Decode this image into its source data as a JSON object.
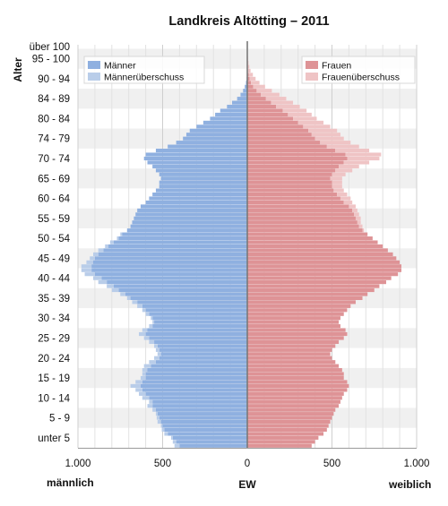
{
  "chart_data": {
    "type": "bar",
    "orientation": "horizontal-population-pyramid",
    "title": "Landkreis Altötting – 2011",
    "ylabel": "Alter",
    "xlabel_left": "männlich",
    "xlabel_center": "EW",
    "xlabel_right": "weiblich",
    "xlim": [
      -1000,
      1000
    ],
    "x_ticks": [
      -1000,
      -500,
      0,
      500,
      1000
    ],
    "x_tick_labels": [
      "1.000",
      "500",
      "0",
      "500",
      "1.000"
    ],
    "age_group_labels": [
      "unter 5",
      "5 - 9",
      "10 - 14",
      "15 - 19",
      "20 - 24",
      "25 - 29",
      "30 - 34",
      "35 - 39",
      "40 - 44",
      "45 - 49",
      "50 - 54",
      "55 - 59",
      "60 - 64",
      "65 - 69",
      "70 - 74",
      "74 - 79",
      "80 - 84",
      "84 - 89",
      "90 - 94",
      "95 - 100",
      "über 100"
    ],
    "ages": [
      0,
      1,
      2,
      3,
      4,
      5,
      6,
      7,
      8,
      9,
      10,
      11,
      12,
      13,
      14,
      15,
      16,
      17,
      18,
      19,
      20,
      21,
      22,
      23,
      24,
      25,
      26,
      27,
      28,
      29,
      30,
      31,
      32,
      33,
      34,
      35,
      36,
      37,
      38,
      39,
      40,
      41,
      42,
      43,
      44,
      45,
      46,
      47,
      48,
      49,
      50,
      51,
      52,
      53,
      54,
      55,
      56,
      57,
      58,
      59,
      60,
      61,
      62,
      63,
      64,
      65,
      66,
      67,
      68,
      69,
      70,
      71,
      72,
      73,
      74,
      75,
      76,
      77,
      78,
      79,
      80,
      81,
      82,
      83,
      84,
      85,
      86,
      87,
      88,
      89,
      90,
      91,
      92,
      93,
      94,
      95,
      96,
      97,
      98,
      99,
      100
    ],
    "series": [
      {
        "name": "Männer",
        "color": "#8fb0e0",
        "values": [
          400,
          420,
          440,
          470,
          490,
          500,
          510,
          520,
          530,
          540,
          560,
          560,
          580,
          600,
          620,
          630,
          620,
          600,
          600,
          590,
          570,
          540,
          520,
          510,
          520,
          530,
          550,
          580,
          600,
          590,
          560,
          550,
          560,
          580,
          600,
          620,
          650,
          690,
          720,
          760,
          790,
          830,
          860,
          900,
          920,
          920,
          910,
          900,
          880,
          850,
          820,
          790,
          760,
          740,
          710,
          690,
          680,
          670,
          660,
          650,
          630,
          600,
          580,
          560,
          540,
          520,
          520,
          510,
          520,
          540,
          560,
          590,
          610,
          600,
          540,
          470,
          420,
          380,
          360,
          340,
          300,
          260,
          220,
          190,
          160,
          120,
          90,
          60,
          40,
          25,
          15,
          8,
          4,
          2,
          1,
          0,
          0,
          0,
          0,
          0,
          0
        ]
      },
      {
        "name": "Männerüberschuss",
        "color": "#b9cde9",
        "values": [
          30,
          20,
          10,
          20,
          15,
          10,
          20,
          15,
          10,
          20,
          30,
          20,
          40,
          40,
          40,
          60,
          40,
          30,
          20,
          30,
          40,
          40,
          30,
          20,
          20,
          20,
          30,
          30,
          40,
          30,
          20,
          10,
          10,
          20,
          20,
          30,
          30,
          20,
          30,
          40,
          40,
          50,
          50,
          60,
          60,
          60,
          40,
          30,
          30,
          30,
          20,
          20,
          10,
          10,
          0,
          0,
          0,
          0,
          0,
          0,
          0,
          0,
          0,
          0,
          0,
          0,
          0,
          0,
          0,
          0,
          0,
          0,
          0,
          0,
          0,
          0,
          0,
          0,
          0,
          0,
          0,
          0,
          0,
          0,
          0,
          0,
          0,
          0,
          0,
          0,
          0,
          0,
          0,
          0,
          0,
          0,
          0,
          0,
          0,
          0,
          0
        ]
      },
      {
        "name": "Frauen",
        "color": "#de9396",
        "values": [
          380,
          400,
          420,
          450,
          470,
          480,
          490,
          500,
          510,
          520,
          540,
          550,
          560,
          570,
          590,
          600,
          590,
          570,
          570,
          560,
          540,
          520,
          500,
          490,
          500,
          520,
          540,
          570,
          590,
          580,
          550,
          540,
          550,
          570,
          590,
          610,
          640,
          680,
          710,
          750,
          780,
          820,
          850,
          890,
          910,
          910,
          900,
          880,
          860,
          830,
          800,
          770,
          740,
          710,
          680,
          660,
          650,
          640,
          630,
          620,
          600,
          570,
          550,
          530,
          510,
          500,
          500,
          490,
          500,
          520,
          540,
          570,
          590,
          580,
          520,
          470,
          430,
          400,
          380,
          360,
          330,
          300,
          270,
          240,
          210,
          170,
          140,
          110,
          80,
          55,
          35,
          22,
          14,
          8,
          4,
          2,
          1,
          0,
          0,
          0,
          0
        ]
      },
      {
        "name": "Frauenüberschuss",
        "color": "#efc4c5",
        "values": [
          0,
          0,
          0,
          0,
          0,
          0,
          0,
          0,
          0,
          0,
          0,
          0,
          0,
          0,
          0,
          0,
          0,
          0,
          0,
          0,
          0,
          0,
          0,
          0,
          0,
          0,
          0,
          0,
          0,
          0,
          0,
          0,
          0,
          0,
          0,
          0,
          0,
          0,
          0,
          0,
          0,
          0,
          0,
          0,
          0,
          0,
          0,
          0,
          0,
          0,
          0,
          0,
          0,
          0,
          10,
          20,
          20,
          30,
          30,
          30,
          40,
          50,
          60,
          60,
          60,
          60,
          60,
          70,
          80,
          100,
          120,
          150,
          190,
          210,
          200,
          190,
          180,
          170,
          170,
          170,
          160,
          150,
          140,
          140,
          140,
          140,
          130,
          120,
          110,
          90,
          70,
          50,
          35,
          25,
          15,
          10,
          6,
          4,
          2,
          1,
          0
        ]
      }
    ],
    "legend": [
      {
        "position": "top-left",
        "items": [
          {
            "label": "Männer",
            "color": "#8fb0e0"
          },
          {
            "label": "Männerüberschuss",
            "color": "#b9cde9"
          }
        ]
      },
      {
        "position": "top-right",
        "items": [
          {
            "label": "Frauen",
            "color": "#de9396"
          },
          {
            "label": "Frauenüberschuss",
            "color": "#efc4c5"
          }
        ]
      }
    ],
    "grid": true,
    "axis_color": "#7a7a7a",
    "band_color": "#f0f0f0"
  }
}
